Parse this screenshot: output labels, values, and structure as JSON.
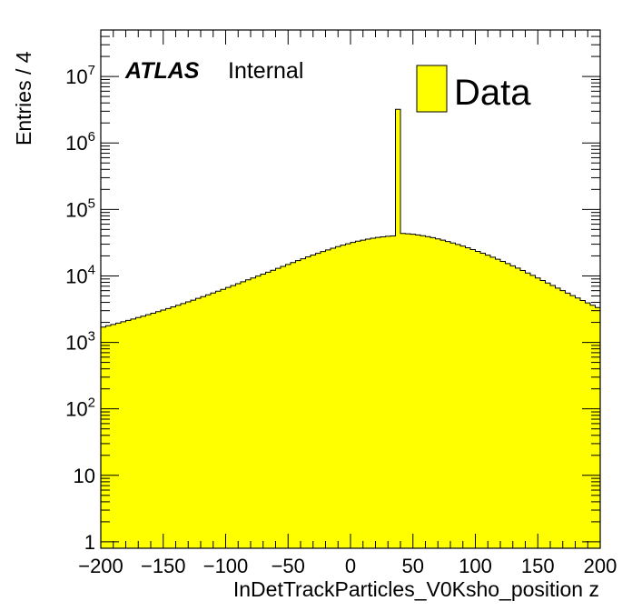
{
  "chart_data": {
    "type": "bar",
    "style": "histogram",
    "experiment_label": "ATLAS",
    "experiment_status": "Internal",
    "xlabel": "InDetTrackParticles_V0Ksho_position z",
    "ylabel": "Entries / 4",
    "xlim": [
      -200,
      200
    ],
    "ylim": [
      0.8,
      50000000
    ],
    "y_scale": "log",
    "bin_width": 4,
    "x_ticks": [
      "−200",
      "−150",
      "−100",
      "−50",
      "0",
      "50",
      "100",
      "150",
      "200"
    ],
    "y_ticks": [
      {
        "value": 1,
        "base": "1",
        "exp": ""
      },
      {
        "value": 10,
        "base": "10",
        "exp": ""
      },
      {
        "value": 100,
        "base": "10",
        "exp": "2"
      },
      {
        "value": 1000,
        "base": "10",
        "exp": "3"
      },
      {
        "value": 10000,
        "base": "10",
        "exp": "4"
      },
      {
        "value": 100000,
        "base": "10",
        "exp": "5"
      },
      {
        "value": 1000000,
        "base": "10",
        "exp": "6"
      },
      {
        "value": 10000000,
        "base": "10",
        "exp": "7"
      }
    ],
    "fill_color": "#ffff00",
    "line_color": "#000000",
    "series": [
      {
        "name": "Data",
        "values": [
          1700,
          1780,
          1860,
          1950,
          2040,
          2140,
          2250,
          2360,
          2480,
          2610,
          2750,
          2900,
          3060,
          3230,
          3420,
          3620,
          3840,
          4070,
          4320,
          4590,
          4880,
          5190,
          5530,
          5890,
          6280,
          6700,
          7150,
          7640,
          8160,
          8720,
          9320,
          9960,
          10650,
          11390,
          12180,
          13020,
          13920,
          14880,
          15900,
          16980,
          18120,
          19320,
          20570,
          21880,
          23240,
          24640,
          26080,
          27540,
          29000,
          30450,
          31870,
          33240,
          34550,
          35770,
          36880,
          37870,
          38720,
          39420,
          39970,
          3200000,
          43500,
          43000,
          42300,
          41400,
          40300,
          39000,
          37600,
          36100,
          34500,
          32900,
          31300,
          29700,
          28100,
          26500,
          24900,
          23400,
          21900,
          20500,
          19100,
          17800,
          16550,
          15350,
          14200,
          13100,
          12060,
          11080,
          10170,
          9320,
          8540,
          7820,
          7160,
          6560,
          6010,
          5510,
          5060,
          4650,
          4270,
          3930,
          3620,
          3340
        ]
      }
    ]
  }
}
